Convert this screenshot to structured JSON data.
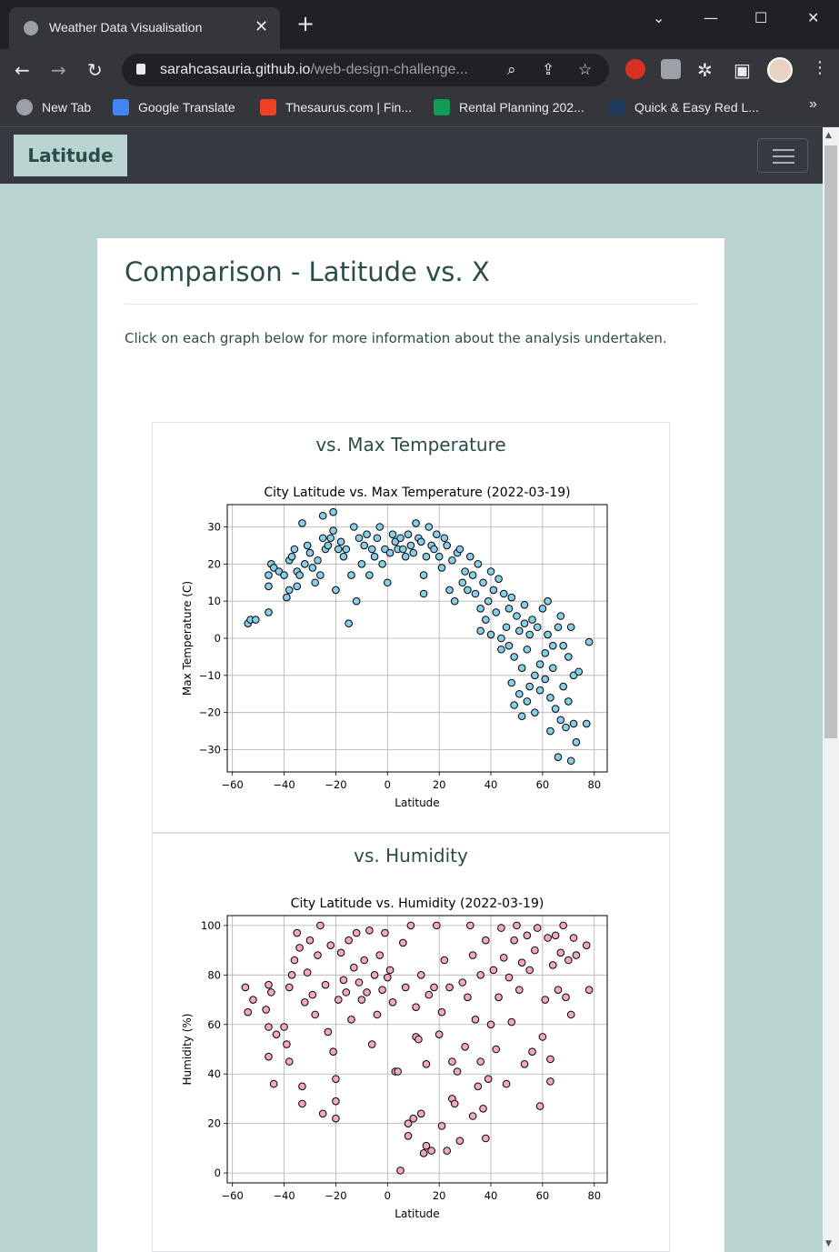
{
  "browser": {
    "tab_title": "Weather Data Visualisation",
    "url_host": "sarahcasauria.github.io",
    "url_path": "/web-design-challenge...",
    "bookmarks": [
      {
        "label": "New Tab",
        "icon": "globe-icon",
        "color": "#9aa0a6"
      },
      {
        "label": "Google Translate",
        "icon": "google-translate-icon",
        "color": "#4285f4"
      },
      {
        "label": "Thesaurus.com | Fin...",
        "icon": "thesaurus-icon",
        "color": "#ef4023"
      },
      {
        "label": "Rental Planning 202...",
        "icon": "sheets-icon",
        "color": "#0f9d58"
      },
      {
        "label": "Quick & Easy Red L...",
        "icon": "site-icon",
        "color": "#203a5c"
      }
    ]
  },
  "navbar": {
    "brand": "Latitude"
  },
  "page": {
    "heading": "Comparison - Latitude vs. X",
    "intro": "Click on each graph below for more information about the analysis undertaken."
  },
  "panels": [
    {
      "title": "vs. Max Temperature"
    },
    {
      "title": "vs. Humidity"
    }
  ],
  "colors": {
    "temp_marker": "#87ceeb",
    "humidity_marker": "#f4a9b8",
    "brand_bg": "#b8d3d0",
    "text": "#2b4d49"
  },
  "chart_data": [
    {
      "type": "scatter",
      "title": "City Latitude vs. Max Temperature (2022-03-19)",
      "xlabel": "Latitude",
      "ylabel": "Max Temperature (C)",
      "xlim": [
        -62,
        85
      ],
      "ylim": [
        -36,
        36
      ],
      "xticks": [
        -60,
        -40,
        -20,
        0,
        20,
        40,
        60,
        80
      ],
      "yticks": [
        -30,
        -20,
        -10,
        0,
        10,
        20,
        30
      ],
      "grid": true,
      "marker_color": "#87ceeb",
      "points": [
        [
          -54,
          4
        ],
        [
          -53,
          5
        ],
        [
          -51,
          5
        ],
        [
          -46,
          7
        ],
        [
          -46,
          14
        ],
        [
          -46,
          17
        ],
        [
          -45,
          20
        ],
        [
          -44,
          19
        ],
        [
          -42,
          18
        ],
        [
          -40,
          17
        ],
        [
          -39,
          11
        ],
        [
          -38,
          13
        ],
        [
          -38,
          21
        ],
        [
          -37,
          22
        ],
        [
          -36,
          24
        ],
        [
          -35,
          18
        ],
        [
          -35,
          14
        ],
        [
          -34,
          17
        ],
        [
          -33,
          31
        ],
        [
          -32,
          20
        ],
        [
          -31,
          25
        ],
        [
          -30,
          23
        ],
        [
          -29,
          19
        ],
        [
          -28,
          15
        ],
        [
          -27,
          21
        ],
        [
          -26,
          17
        ],
        [
          -25,
          27
        ],
        [
          -25,
          33
        ],
        [
          -24,
          24
        ],
        [
          -23,
          25
        ],
        [
          -22,
          27
        ],
        [
          -21,
          29
        ],
        [
          -21,
          34
        ],
        [
          -20,
          13
        ],
        [
          -19,
          24
        ],
        [
          -18,
          26
        ],
        [
          -17,
          22
        ],
        [
          -16,
          24
        ],
        [
          -15,
          4
        ],
        [
          -14,
          17
        ],
        [
          -13,
          30
        ],
        [
          -12,
          10
        ],
        [
          -11,
          27
        ],
        [
          -10,
          20
        ],
        [
          -9,
          25
        ],
        [
          -8,
          28
        ],
        [
          -7,
          17
        ],
        [
          -6,
          24
        ],
        [
          -5,
          22
        ],
        [
          -4,
          27
        ],
        [
          -3,
          30
        ],
        [
          -2,
          20
        ],
        [
          -1,
          24
        ],
        [
          0,
          15
        ],
        [
          1,
          23
        ],
        [
          2,
          28
        ],
        [
          3,
          26
        ],
        [
          4,
          24
        ],
        [
          5,
          27
        ],
        [
          6,
          24
        ],
        [
          7,
          22
        ],
        [
          8,
          28
        ],
        [
          9,
          25
        ],
        [
          10,
          23
        ],
        [
          11,
          31
        ],
        [
          12,
          27
        ],
        [
          13,
          26
        ],
        [
          14,
          17
        ],
        [
          14,
          12
        ],
        [
          15,
          22
        ],
        [
          16,
          30
        ],
        [
          17,
          25
        ],
        [
          18,
          24
        ],
        [
          19,
          28
        ],
        [
          20,
          22
        ],
        [
          21,
          19
        ],
        [
          22,
          27
        ],
        [
          23,
          25
        ],
        [
          24,
          13
        ],
        [
          25,
          21
        ],
        [
          26,
          10
        ],
        [
          27,
          23
        ],
        [
          28,
          24
        ],
        [
          29,
          15
        ],
        [
          30,
          18
        ],
        [
          31,
          13
        ],
        [
          32,
          22
        ],
        [
          33,
          17
        ],
        [
          34,
          12
        ],
        [
          35,
          20
        ],
        [
          36,
          8
        ],
        [
          36,
          2
        ],
        [
          37,
          15
        ],
        [
          38,
          5
        ],
        [
          39,
          10
        ],
        [
          40,
          18
        ],
        [
          40,
          1
        ],
        [
          41,
          13
        ],
        [
          42,
          7
        ],
        [
          43,
          16
        ],
        [
          44,
          0
        ],
        [
          44,
          -3
        ],
        [
          45,
          12
        ],
        [
          46,
          3
        ],
        [
          47,
          -2
        ],
        [
          47,
          8
        ],
        [
          48,
          11
        ],
        [
          48,
          -12
        ],
        [
          49,
          -5
        ],
        [
          49,
          -18
        ],
        [
          50,
          6
        ],
        [
          51,
          2
        ],
        [
          51,
          -15
        ],
        [
          52,
          -21
        ],
        [
          52,
          -8
        ],
        [
          53,
          4
        ],
        [
          53,
          9
        ],
        [
          54,
          -3
        ],
        [
          54,
          -17
        ],
        [
          55,
          1
        ],
        [
          55,
          -13
        ],
        [
          56,
          5
        ],
        [
          57,
          -10
        ],
        [
          57,
          -20
        ],
        [
          58,
          3
        ],
        [
          59,
          -7
        ],
        [
          59,
          -14
        ],
        [
          60,
          8
        ],
        [
          61,
          -4
        ],
        [
          61,
          -11
        ],
        [
          62,
          1
        ],
        [
          62,
          10
        ],
        [
          63,
          -16
        ],
        [
          63,
          -25
        ],
        [
          64,
          -2
        ],
        [
          64,
          -8
        ],
        [
          65,
          -19
        ],
        [
          66,
          -32
        ],
        [
          66,
          3
        ],
        [
          67,
          6
        ],
        [
          67,
          -22
        ],
        [
          68,
          -13
        ],
        [
          68,
          -2
        ],
        [
          69,
          -24
        ],
        [
          70,
          -17
        ],
        [
          70,
          -5
        ],
        [
          71,
          -33
        ],
        [
          71,
          3
        ],
        [
          72,
          -10
        ],
        [
          72,
          -23
        ],
        [
          73,
          -28
        ],
        [
          74,
          -9
        ],
        [
          77,
          -23
        ],
        [
          78,
          -1
        ]
      ]
    },
    {
      "type": "scatter",
      "title": "City Latitude vs. Humidity (2022-03-19)",
      "xlabel": "Latitude",
      "ylabel": "Humidity (%)",
      "xlim": [
        -62,
        85
      ],
      "ylim": [
        -4,
        104
      ],
      "xticks": [
        -60,
        -40,
        -20,
        0,
        20,
        40,
        60,
        80
      ],
      "yticks": [
        0,
        20,
        40,
        60,
        80,
        100
      ],
      "grid": true,
      "marker_color": "#f4a9b8",
      "points": [
        [
          -55,
          75
        ],
        [
          -54,
          65
        ],
        [
          -52,
          70
        ],
        [
          -47,
          66
        ],
        [
          -46,
          59
        ],
        [
          -46,
          47
        ],
        [
          -46,
          76
        ],
        [
          -45,
          73
        ],
        [
          -44,
          36
        ],
        [
          -43,
          56
        ],
        [
          -40,
          59
        ],
        [
          -39,
          52
        ],
        [
          -38,
          45
        ],
        [
          -38,
          75
        ],
        [
          -37,
          80
        ],
        [
          -36,
          86
        ],
        [
          -35,
          97
        ],
        [
          -34,
          91
        ],
        [
          -33,
          35
        ],
        [
          -33,
          28
        ],
        [
          -32,
          69
        ],
        [
          -31,
          81
        ],
        [
          -30,
          94
        ],
        [
          -29,
          72
        ],
        [
          -28,
          64
        ],
        [
          -27,
          88
        ],
        [
          -26,
          100
        ],
        [
          -25,
          24
        ],
        [
          -24,
          76
        ],
        [
          -23,
          57
        ],
        [
          -22,
          92
        ],
        [
          -21,
          49
        ],
        [
          -20,
          38
        ],
        [
          -20,
          29
        ],
        [
          -20,
          22
        ],
        [
          -19,
          70
        ],
        [
          -18,
          89
        ],
        [
          -17,
          78
        ],
        [
          -16,
          73
        ],
        [
          -15,
          94
        ],
        [
          -14,
          62
        ],
        [
          -13,
          83
        ],
        [
          -12,
          97
        ],
        [
          -11,
          77
        ],
        [
          -10,
          70
        ],
        [
          -9,
          86
        ],
        [
          -8,
          73
        ],
        [
          -7,
          98
        ],
        [
          -6,
          52
        ],
        [
          -5,
          80
        ],
        [
          -4,
          64
        ],
        [
          -3,
          88
        ],
        [
          -2,
          74
        ],
        [
          -1,
          97
        ],
        [
          0,
          79
        ],
        [
          1,
          82
        ],
        [
          2,
          69
        ],
        [
          3,
          41
        ],
        [
          4,
          41
        ],
        [
          5,
          1
        ],
        [
          6,
          93
        ],
        [
          7,
          75
        ],
        [
          8,
          15
        ],
        [
          8,
          20
        ],
        [
          9,
          100
        ],
        [
          10,
          22
        ],
        [
          11,
          55
        ],
        [
          11,
          67
        ],
        [
          12,
          54
        ],
        [
          13,
          24
        ],
        [
          13,
          80
        ],
        [
          14,
          8
        ],
        [
          15,
          11
        ],
        [
          15,
          44
        ],
        [
          16,
          72
        ],
        [
          17,
          9
        ],
        [
          18,
          75
        ],
        [
          19,
          100
        ],
        [
          20,
          56
        ],
        [
          21,
          19
        ],
        [
          21,
          65
        ],
        [
          22,
          86
        ],
        [
          23,
          9
        ],
        [
          24,
          75
        ],
        [
          25,
          30
        ],
        [
          25,
          45
        ],
        [
          26,
          28
        ],
        [
          27,
          41
        ],
        [
          28,
          13
        ],
        [
          29,
          77
        ],
        [
          30,
          51
        ],
        [
          31,
          71
        ],
        [
          32,
          100
        ],
        [
          33,
          23
        ],
        [
          33,
          88
        ],
        [
          34,
          62
        ],
        [
          35,
          35
        ],
        [
          36,
          45
        ],
        [
          36,
          80
        ],
        [
          37,
          26
        ],
        [
          38,
          14
        ],
        [
          38,
          94
        ],
        [
          39,
          38
        ],
        [
          40,
          60
        ],
        [
          41,
          82
        ],
        [
          42,
          50
        ],
        [
          43,
          71
        ],
        [
          44,
          99
        ],
        [
          45,
          87
        ],
        [
          46,
          36
        ],
        [
          47,
          79
        ],
        [
          48,
          61
        ],
        [
          49,
          94
        ],
        [
          50,
          100
        ],
        [
          51,
          74
        ],
        [
          52,
          85
        ],
        [
          53,
          44
        ],
        [
          54,
          96
        ],
        [
          55,
          82
        ],
        [
          56,
          49
        ],
        [
          57,
          90
        ],
        [
          58,
          99
        ],
        [
          59,
          27
        ],
        [
          60,
          55
        ],
        [
          61,
          70
        ],
        [
          62,
          95
        ],
        [
          63,
          37
        ],
        [
          63,
          46
        ],
        [
          64,
          84
        ],
        [
          65,
          96
        ],
        [
          66,
          74
        ],
        [
          67,
          89
        ],
        [
          68,
          100
        ],
        [
          69,
          71
        ],
        [
          70,
          86
        ],
        [
          71,
          64
        ],
        [
          72,
          95
        ],
        [
          73,
          88
        ],
        [
          77,
          92
        ],
        [
          78,
          74
        ]
      ]
    }
  ]
}
